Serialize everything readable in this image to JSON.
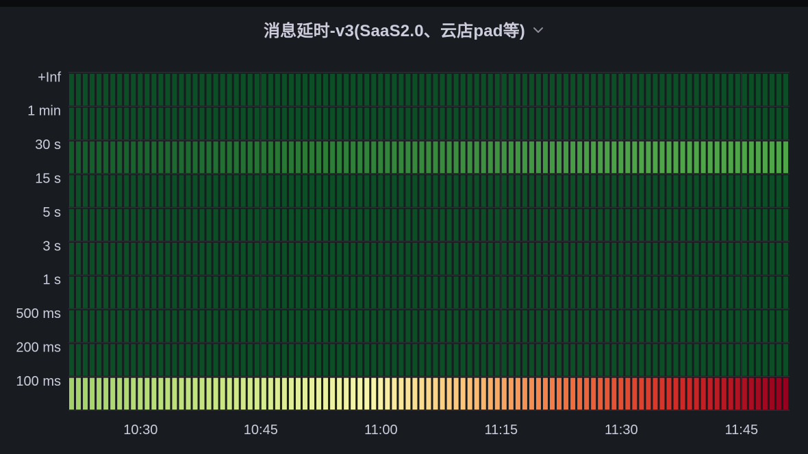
{
  "panel": {
    "title": "消息延时-v3(SaaS2.0、云店pad等)"
  },
  "colors": {
    "background": "#181b1f",
    "grid": "#34363c",
    "text": "#ccccdc",
    "cold": "#0c4f27"
  },
  "chart_data": {
    "type": "heatmap",
    "x_range": [
      "10:21",
      "11:51"
    ],
    "x_ticks": [
      "10:30",
      "10:45",
      "11:00",
      "11:15",
      "11:30",
      "11:45"
    ],
    "y_buckets": [
      "100 ms",
      "200 ms",
      "500 ms",
      "1 s",
      "3 s",
      "5 s",
      "15 s",
      "30 s",
      "1 min",
      "+Inf"
    ],
    "columns": 105,
    "intensity": {
      "100 ms": "rises steadily from moderate at 10:21 to highest at 11:51",
      "200 ms": "low",
      "500 ms": "low",
      "1 s": "low",
      "3 s": "low",
      "5 s": "low",
      "15 s": "low",
      "30 s": "low at 10:21, rising to moderate by 11:51",
      "1 min": "low",
      "+Inf": "low"
    },
    "color_scheme": "RdYlGn reversed (green = low, yellow = mid, red = high)",
    "grid": true,
    "legend": "none"
  }
}
